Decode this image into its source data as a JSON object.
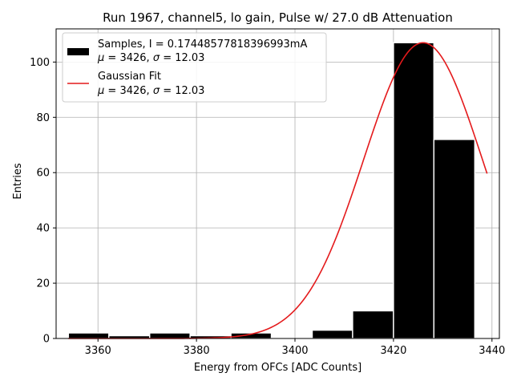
{
  "chart_data": {
    "type": "bar",
    "title": "Run 1967, channel5, lo gain, Pulse w/ 27.0 dB Attenuation",
    "xlabel": "Energy from OFCs [ADC Counts]",
    "ylabel": "Entries",
    "xlim": [
      3351.5,
      3441.5
    ],
    "ylim": [
      0,
      112
    ],
    "xticks": [
      3360,
      3380,
      3400,
      3420,
      3440
    ],
    "yticks": [
      0,
      20,
      40,
      60,
      80,
      100
    ],
    "grid": true,
    "legend_placement": "top-left",
    "colors": {
      "bars": "#000000",
      "bar_edge": "#ffffff",
      "fit": "#e41a1c",
      "grid": "#b0b0b0"
    },
    "histogram": {
      "bin_edges": [
        3354,
        3362.2,
        3370.5,
        3378.7,
        3387.0,
        3395.2,
        3403.5,
        3411.7,
        3420.0,
        3428.2,
        3436.5
      ],
      "counts": [
        2,
        1,
        2,
        1,
        2,
        0,
        3,
        10,
        107,
        72
      ],
      "legend_line1": "Samples, I = 0.17448577818396993mA",
      "legend_line2_mu": "3426",
      "legend_line2_sigma": "12.03"
    },
    "fit": {
      "legend_line1": "Gaussian Fit",
      "legend_line2_mu": "3426",
      "legend_line2_sigma": "12.03",
      "mu": 3426,
      "sigma": 12.03,
      "amplitude": 107,
      "x_range": [
        3354,
        3439
      ]
    }
  }
}
